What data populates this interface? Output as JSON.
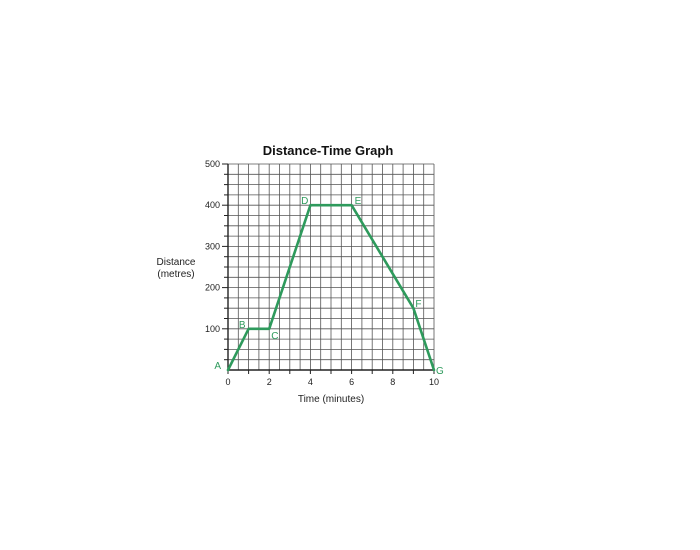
{
  "chart_data": {
    "type": "line",
    "title": "Distance-Time Graph",
    "xlabel": "Time (minutes)",
    "ylabel_lines": [
      "Distance",
      "(metres)"
    ],
    "xlim": [
      0,
      10
    ],
    "ylim": [
      0,
      500
    ],
    "x_ticks": [
      0,
      2,
      4,
      6,
      8,
      10
    ],
    "y_ticks": [
      100,
      200,
      300,
      400,
      500
    ],
    "x_minor_step": 0.5,
    "y_minor_step": 25,
    "grid": true,
    "points": [
      {
        "label": "A",
        "x": 0,
        "y": 0
      },
      {
        "label": "B",
        "x": 1,
        "y": 100
      },
      {
        "label": "C",
        "x": 2,
        "y": 100
      },
      {
        "label": "D",
        "x": 4,
        "y": 400
      },
      {
        "label": "E",
        "x": 6,
        "y": 400
      },
      {
        "label": "F",
        "x": 9,
        "y": 150
      },
      {
        "label": "G",
        "x": 10,
        "y": 0
      }
    ],
    "line_color": "#2e9a5c",
    "grid_color": "#555555"
  }
}
